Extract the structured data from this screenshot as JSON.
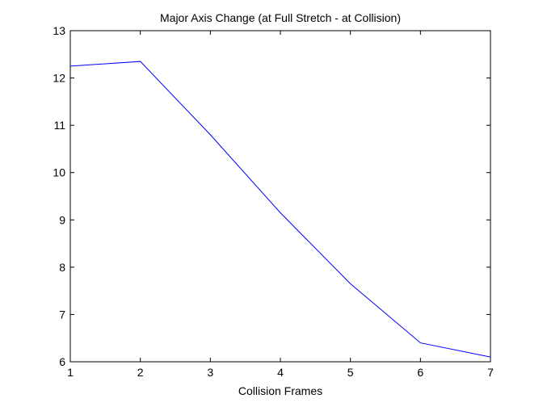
{
  "chart_data": {
    "type": "line",
    "title": "Major Axis Change (at Full Stretch - at Collision)",
    "xlabel": "Collision Frames",
    "ylabel": "",
    "xlim": [
      1,
      7
    ],
    "ylim": [
      6,
      13
    ],
    "xticks": [
      1,
      2,
      3,
      4,
      5,
      6,
      7
    ],
    "yticks": [
      6,
      7,
      8,
      9,
      10,
      11,
      12,
      13
    ],
    "grid": false,
    "legend": "none",
    "series": [
      {
        "color": "#0000ff",
        "x": [
          1,
          2,
          3,
          4,
          5,
          6,
          7
        ],
        "y": [
          12.25,
          12.35,
          10.8,
          9.15,
          7.65,
          6.4,
          6.1
        ]
      }
    ]
  }
}
